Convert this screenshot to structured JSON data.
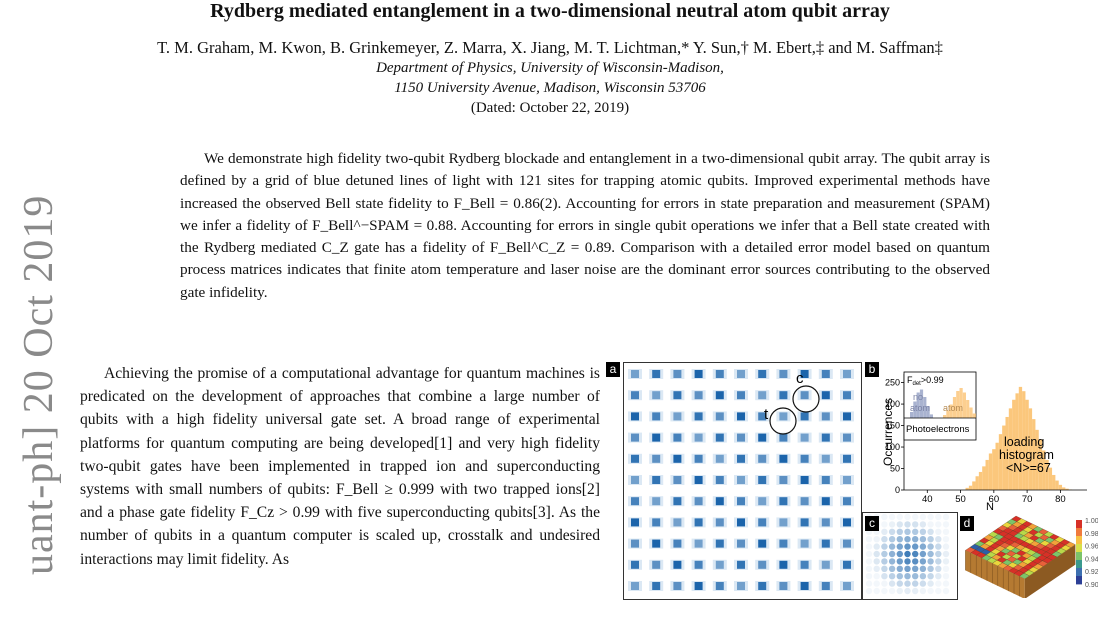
{
  "paper": {
    "title": "Rydberg mediated entanglement in a two-dimensional neutral atom qubit array",
    "authors": "T. M. Graham, M. Kwon, B. Grinkemeyer, Z. Marra, X. Jiang, M. T. Lichtman,* Y. Sun,† M. Ebert,‡ and M. Saffman‡",
    "affiliation_line1": "Department of Physics, University of Wisconsin-Madison,",
    "affiliation_line2": "1150 University Avenue, Madison, Wisconsin 53706",
    "dated": "(Dated: October 22, 2019)",
    "abstract": "We demonstrate high fidelity two-qubit Rydberg blockade and entanglement in a two-dimensional qubit array. The qubit array is defined by a grid of blue detuned lines of light with 121 sites for trapping atomic qubits. Improved experimental methods have increased the observed Bell state fidelity to F_Bell = 0.86(2). Accounting for errors in state preparation and measurement (SPAM) we infer a fidelity of F_Bell^−SPAM = 0.88. Accounting for errors in single qubit operations we infer that a Bell state created with the Rydberg mediated C_Z gate has a fidelity of F_Bell^C_Z = 0.89. Comparison with a detailed error model based on quantum process matrices indicates that finite atom temperature and laser noise are the dominant error sources contributing to the observed gate infidelity.",
    "body_paragraph": "Achieving the promise of a computational advantage for quantum machines is predicated on the development of approaches that combine a large number of qubits with a high fidelity universal gate set. A broad range of experimental platforms for quantum computing are being developed[1] and very high fidelity two-qubit gates have been implemented in trapped ion and superconducting systems with small numbers of qubits: F_Bell ≥ 0.999 with two trapped ions[2] and a phase gate fidelity F_Cz > 0.99 with five superconducting qubits[3]. As the number of qubits in a quantum computer is scaled up, crosstalk and undesired interactions may limit fidelity. As",
    "arxiv_stamp": "uant-ph] 20 Oct 2019"
  },
  "figure": {
    "panel_labels": {
      "a": "a",
      "b": "b",
      "c": "c",
      "d": "d"
    },
    "panel_a": {
      "rows": 11,
      "cols": 11,
      "control_label": "c",
      "target_label": "t"
    },
    "panel_c": {
      "rows": 11,
      "cols": 11
    },
    "panel_d": {
      "colorbar_ticks": [
        "1.00",
        "0.98",
        "0.96",
        "0.94",
        "0.92",
        "0.90"
      ]
    },
    "chart_data": {
      "type": "bar",
      "xlabel": "N",
      "ylabel": "Occurrences",
      "xticks": [
        "40",
        "50",
        "60",
        "70",
        "80"
      ],
      "yticks": [
        "0",
        "50",
        "100",
        "150",
        "200",
        "250"
      ],
      "xlim": [
        33,
        88
      ],
      "ylim": [
        0,
        270
      ],
      "annotations": {
        "fdet": "F",
        "fdet_sub": "det",
        "fdet_rest": ">0.99",
        "no_atom_1": "no",
        "no_atom_2": "atom",
        "atom": "atom",
        "photoelectrons": "Photoelectrons",
        "loading_1": "loading",
        "loading_2": "histogram",
        "mean": "<N>=67"
      },
      "series": [
        {
          "values_x": [
            52,
            53,
            54,
            55,
            56,
            57,
            58,
            59,
            60,
            61,
            62,
            63,
            64,
            65,
            66,
            67,
            68,
            69,
            70,
            71,
            72,
            73,
            74,
            75,
            76,
            77,
            78,
            79,
            80,
            81,
            82,
            83
          ],
          "values_y": [
            5,
            10,
            20,
            32,
            42,
            55,
            70,
            85,
            95,
            110,
            130,
            150,
            170,
            190,
            210,
            225,
            240,
            230,
            210,
            190,
            165,
            140,
            118,
            92,
            70,
            52,
            35,
            22,
            12,
            6,
            3,
            1
          ]
        }
      ],
      "inset_series": [
        {
          "values_x": [
            0,
            1,
            2,
            3,
            4,
            5,
            6
          ],
          "values_y": [
            20,
            55,
            85,
            95,
            70,
            40,
            12
          ]
        },
        {
          "values_x": [
            10,
            11,
            12,
            13,
            14,
            15,
            16,
            17,
            18,
            19
          ],
          "values_y": [
            10,
            25,
            45,
            70,
            90,
            100,
            85,
            60,
            35,
            15
          ]
        }
      ]
    },
    "colors": {
      "spot": "#1b64ab",
      "hist": "#fbc77c",
      "inset_blue": "#9aa6c8"
    }
  }
}
